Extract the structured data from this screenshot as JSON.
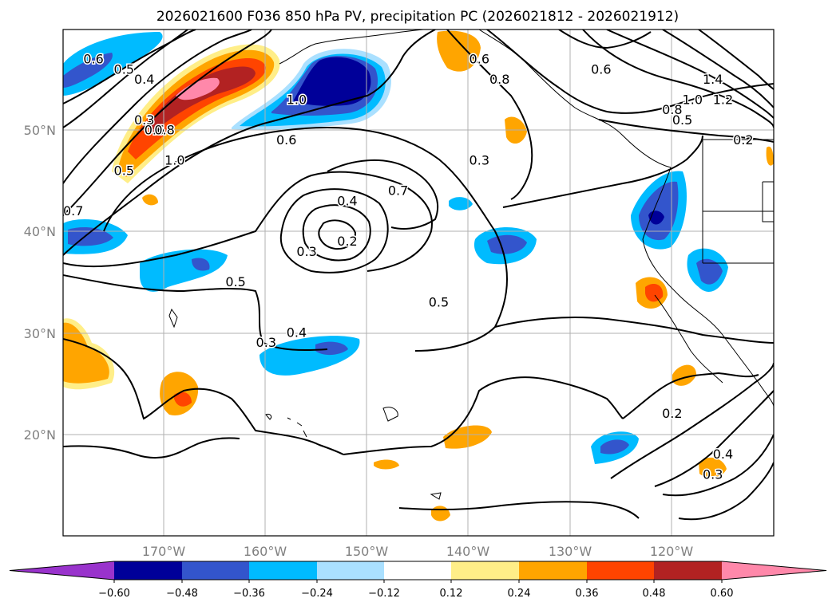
{
  "title": "2026021600 F036 850 hPa PV, precipitation PC (2026021812 - 2026021912)",
  "lon_ticks": [
    "170°W",
    "160°W",
    "150°W",
    "140°W",
    "130°W",
    "120°W"
  ],
  "lat_ticks": [
    "50°N",
    "40°N",
    "30°N",
    "20°N"
  ],
  "colorbar": {
    "colors": [
      "#9933cc",
      "#000099",
      "#3355cc",
      "#00bbff",
      "#aae0ff",
      "#ffffff",
      "#ffee88",
      "#ffa500",
      "#ff4400",
      "#b22222",
      "#ff88aa"
    ],
    "ticks": [
      "−0.60",
      "−0.48",
      "−0.36",
      "−0.24",
      "−0.12",
      "0.12",
      "0.24",
      "0.36",
      "0.48",
      "0.60"
    ]
  },
  "contour_labels": [
    {
      "text": "0.6",
      "lon": -177,
      "lat": 57
    },
    {
      "text": "0.5",
      "lon": -174,
      "lat": 56
    },
    {
      "text": "0.4",
      "lon": -172,
      "lat": 55
    },
    {
      "text": "0.3",
      "lon": -172,
      "lat": 51
    },
    {
      "text": "0.5",
      "lon": -174,
      "lat": 46
    },
    {
      "text": "0.6",
      "lon": -171,
      "lat": 50
    },
    {
      "text": "0.8",
      "lon": -170,
      "lat": 50
    },
    {
      "text": "1.0",
      "lon": -169,
      "lat": 47
    },
    {
      "text": "0.7",
      "lon": -179,
      "lat": 42
    },
    {
      "text": "1.0",
      "lon": -157,
      "lat": 53
    },
    {
      "text": "0.6",
      "lon": -158,
      "lat": 49
    },
    {
      "text": "0.4",
      "lon": -152,
      "lat": 43
    },
    {
      "text": "0.7",
      "lon": -147,
      "lat": 44
    },
    {
      "text": "0.3",
      "lon": -156,
      "lat": 38
    },
    {
      "text": "0.2",
      "lon": -152,
      "lat": 39
    },
    {
      "text": "0.5",
      "lon": -163,
      "lat": 35
    },
    {
      "text": "0.5",
      "lon": -143,
      "lat": 33
    },
    {
      "text": "0.4",
      "lon": -157,
      "lat": 30
    },
    {
      "text": "0.3",
      "lon": -160,
      "lat": 29
    },
    {
      "text": "0.3",
      "lon": -139,
      "lat": 47
    },
    {
      "text": "0.6",
      "lon": -139,
      "lat": 57
    },
    {
      "text": "0.8",
      "lon": -137,
      "lat": 55
    },
    {
      "text": "0.6",
      "lon": -127,
      "lat": 56
    },
    {
      "text": "1.4",
      "lon": -116,
      "lat": 55
    },
    {
      "text": "1.2",
      "lon": -115,
      "lat": 53
    },
    {
      "text": "1.0",
      "lon": -118,
      "lat": 53
    },
    {
      "text": "0.8",
      "lon": -120,
      "lat": 52
    },
    {
      "text": "0.5",
      "lon": -119,
      "lat": 51
    },
    {
      "text": "0.2",
      "lon": -113,
      "lat": 49
    },
    {
      "text": "0.2",
      "lon": -120,
      "lat": 22
    },
    {
      "text": "0.4",
      "lon": -115,
      "lat": 18
    },
    {
      "text": "0.3",
      "lon": -116,
      "lat": 16
    }
  ]
}
